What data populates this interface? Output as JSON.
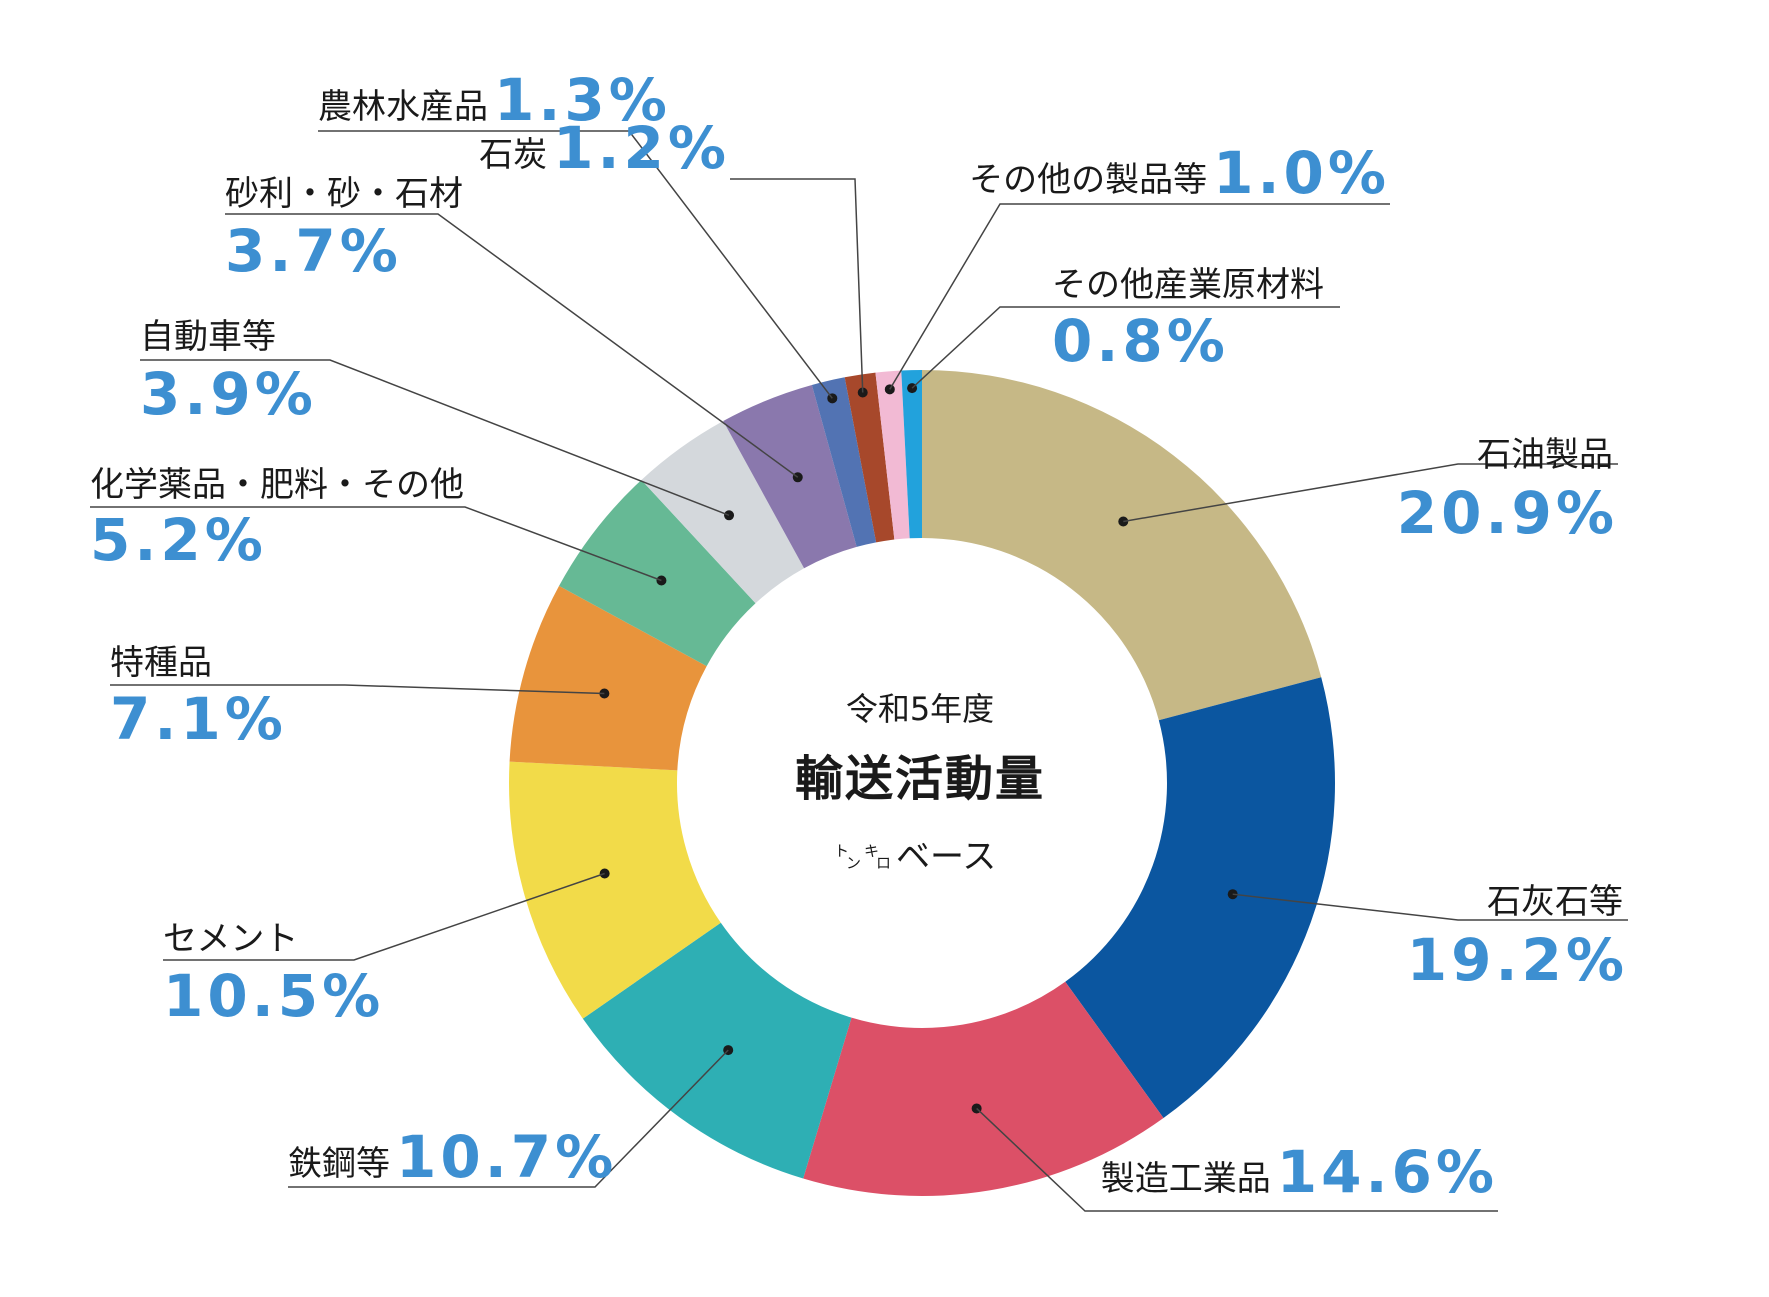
{
  "chart_data": {
    "type": "pie",
    "donut": true,
    "center": {
      "line1": "令和5年度",
      "line2": "輸送活動量",
      "line3_small": [
        "ト",
        "ン",
        "キ",
        "ロ"
      ],
      "line3": "ベース"
    },
    "slices": [
      {
        "label": "石油製品",
        "value": 20.9,
        "text": "20.9%",
        "color": "#c6b886"
      },
      {
        "label": "石灰石等",
        "value": 19.2,
        "text": "19.2%",
        "color": "#0b56a0"
      },
      {
        "label": "製造工業品",
        "value": 14.6,
        "text": "14.6%",
        "color": "#dc5067"
      },
      {
        "label": "鉄鋼等",
        "value": 10.7,
        "text": "10.7%",
        "color": "#2eafb4"
      },
      {
        "label": "セメント",
        "value": 10.5,
        "text": "10.5%",
        "color": "#f2db49"
      },
      {
        "label": "特種品",
        "value": 7.1,
        "text": "7.1%",
        "color": "#e8943c"
      },
      {
        "label": "化学薬品・肥料・その他",
        "value": 5.2,
        "text": "5.2%",
        "color": "#66b995"
      },
      {
        "label": "自動車等",
        "value": 3.9,
        "text": "3.9%",
        "color": "#d4d8dc"
      },
      {
        "label": "砂利・砂・石材",
        "value": 3.7,
        "text": "3.7%",
        "color": "#8a78ad"
      },
      {
        "label": "農林水産品",
        "value": 1.3,
        "text": "1.3%",
        "color": "#5273b3"
      },
      {
        "label": "石炭",
        "value": 1.2,
        "text": "1.2%",
        "color": "#a7482b"
      },
      {
        "label": "その他の製品等",
        "value": 1.0,
        "text": "1.0%",
        "color": "#f2bad4"
      },
      {
        "label": "その他産業原材料",
        "value": 0.8,
        "text": "0.8%",
        "color": "#22a2dc"
      }
    ],
    "label_color": "#3d8fd1",
    "line_color": "#444444"
  }
}
